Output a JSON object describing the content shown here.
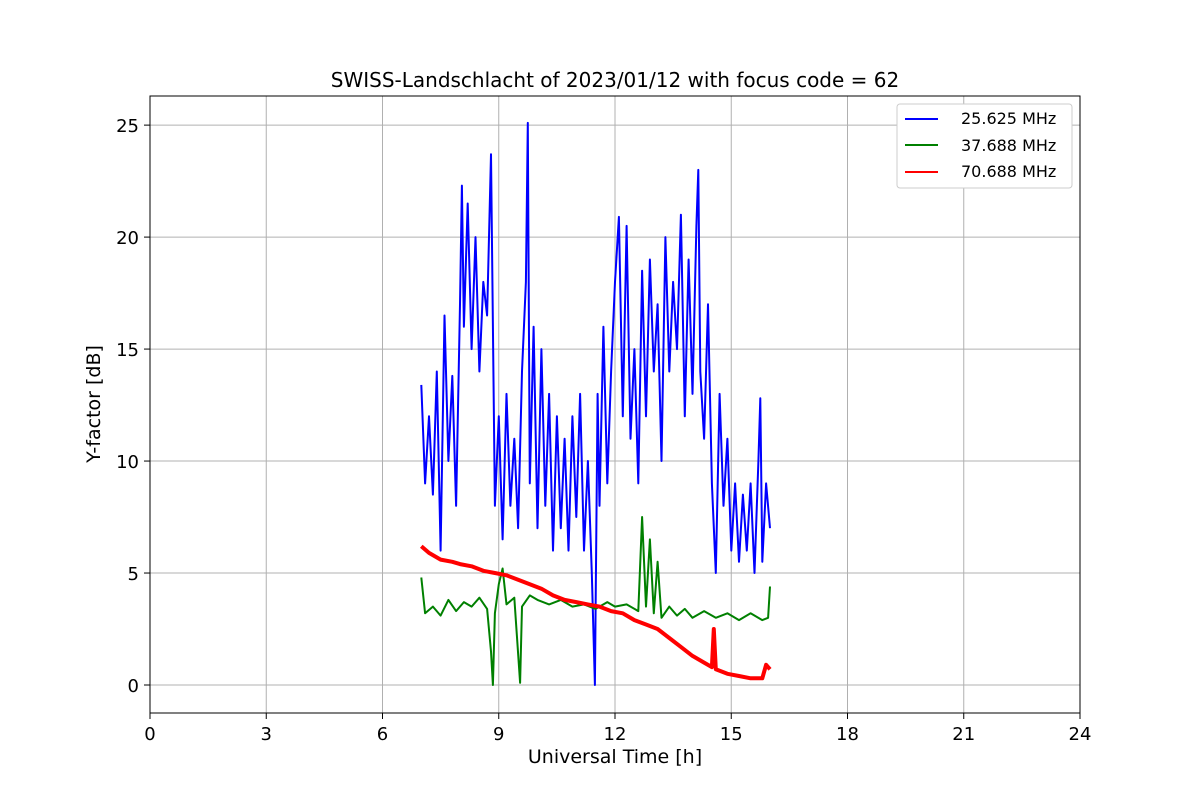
{
  "chart_data": {
    "type": "line",
    "title": "SWISS-Landschlacht of 2023/01/12 with focus code = 62",
    "xlabel": "Universal Time [h]",
    "ylabel": "Y-factor [dB]",
    "xlim": [
      0,
      24
    ],
    "ylim": [
      -1.25,
      26.3
    ],
    "xticks": [
      0,
      3,
      6,
      9,
      12,
      15,
      18,
      21,
      24
    ],
    "yticks": [
      0,
      5,
      10,
      15,
      20,
      25
    ],
    "xtick_labels": [
      "0",
      "3",
      "6",
      "9",
      "12",
      "15",
      "18",
      "21",
      "24"
    ],
    "ytick_labels": [
      "0",
      "5",
      "10",
      "15",
      "20",
      "25"
    ],
    "grid": true,
    "legend_position": "top-right",
    "series": [
      {
        "name": "25.625 MHz",
        "color": "#0000ff",
        "points": [
          [
            7.0,
            13.4
          ],
          [
            7.1,
            9.0
          ],
          [
            7.2,
            12.0
          ],
          [
            7.3,
            8.5
          ],
          [
            7.4,
            14.0
          ],
          [
            7.5,
            6.0
          ],
          [
            7.6,
            16.5
          ],
          [
            7.7,
            10.0
          ],
          [
            7.8,
            13.8
          ],
          [
            7.9,
            8.0
          ],
          [
            8.0,
            17.0
          ],
          [
            8.05,
            22.3
          ],
          [
            8.1,
            16.0
          ],
          [
            8.2,
            21.5
          ],
          [
            8.3,
            15.0
          ],
          [
            8.4,
            20.0
          ],
          [
            8.5,
            14.0
          ],
          [
            8.6,
            18.0
          ],
          [
            8.7,
            16.5
          ],
          [
            8.8,
            23.7
          ],
          [
            8.9,
            8.0
          ],
          [
            9.0,
            12.0
          ],
          [
            9.1,
            6.5
          ],
          [
            9.2,
            13.0
          ],
          [
            9.3,
            8.0
          ],
          [
            9.4,
            11.0
          ],
          [
            9.5,
            7.0
          ],
          [
            9.6,
            14.0
          ],
          [
            9.7,
            18.0
          ],
          [
            9.75,
            25.1
          ],
          [
            9.8,
            9.0
          ],
          [
            9.9,
            16.0
          ],
          [
            10.0,
            7.0
          ],
          [
            10.1,
            15.0
          ],
          [
            10.2,
            8.0
          ],
          [
            10.3,
            13.0
          ],
          [
            10.4,
            6.0
          ],
          [
            10.5,
            12.0
          ],
          [
            10.6,
            7.0
          ],
          [
            10.7,
            11.0
          ],
          [
            10.8,
            6.0
          ],
          [
            10.9,
            12.0
          ],
          [
            11.0,
            7.5
          ],
          [
            11.1,
            13.0
          ],
          [
            11.2,
            6.0
          ],
          [
            11.3,
            10.0
          ],
          [
            11.4,
            5.0
          ],
          [
            11.48,
            0.0
          ],
          [
            11.55,
            13.0
          ],
          [
            11.6,
            8.0
          ],
          [
            11.7,
            16.0
          ],
          [
            11.8,
            9.0
          ],
          [
            11.9,
            14.0
          ],
          [
            12.0,
            18.0
          ],
          [
            12.1,
            20.9
          ],
          [
            12.2,
            12.0
          ],
          [
            12.3,
            20.5
          ],
          [
            12.4,
            11.0
          ],
          [
            12.5,
            15.0
          ],
          [
            12.6,
            9.0
          ],
          [
            12.7,
            18.5
          ],
          [
            12.8,
            12.0
          ],
          [
            12.9,
            19.0
          ],
          [
            13.0,
            14.0
          ],
          [
            13.1,
            17.0
          ],
          [
            13.2,
            10.0
          ],
          [
            13.3,
            20.0
          ],
          [
            13.4,
            14.0
          ],
          [
            13.5,
            18.0
          ],
          [
            13.6,
            15.0
          ],
          [
            13.7,
            21.0
          ],
          [
            13.8,
            12.0
          ],
          [
            13.9,
            19.0
          ],
          [
            14.0,
            13.0
          ],
          [
            14.1,
            20.5
          ],
          [
            14.15,
            23.0
          ],
          [
            14.2,
            14.0
          ],
          [
            14.3,
            11.0
          ],
          [
            14.4,
            17.0
          ],
          [
            14.5,
            9.0
          ],
          [
            14.6,
            5.0
          ],
          [
            14.7,
            13.0
          ],
          [
            14.8,
            8.0
          ],
          [
            14.9,
            11.0
          ],
          [
            15.0,
            6.0
          ],
          [
            15.1,
            9.0
          ],
          [
            15.2,
            5.5
          ],
          [
            15.3,
            8.5
          ],
          [
            15.4,
            6.0
          ],
          [
            15.5,
            9.0
          ],
          [
            15.6,
            5.0
          ],
          [
            15.7,
            10.0
          ],
          [
            15.75,
            12.8
          ],
          [
            15.8,
            5.5
          ],
          [
            15.9,
            9.0
          ],
          [
            16.0,
            7.0
          ]
        ]
      },
      {
        "name": "37.688 MHz",
        "color": "#008000",
        "points": [
          [
            7.0,
            4.8
          ],
          [
            7.1,
            3.2
          ],
          [
            7.3,
            3.5
          ],
          [
            7.5,
            3.1
          ],
          [
            7.7,
            3.8
          ],
          [
            7.9,
            3.3
          ],
          [
            8.1,
            3.7
          ],
          [
            8.3,
            3.5
          ],
          [
            8.5,
            3.9
          ],
          [
            8.7,
            3.4
          ],
          [
            8.8,
            1.5
          ],
          [
            8.85,
            0.0
          ],
          [
            8.9,
            3.2
          ],
          [
            9.0,
            4.5
          ],
          [
            9.1,
            5.2
          ],
          [
            9.2,
            3.6
          ],
          [
            9.4,
            3.9
          ],
          [
            9.55,
            0.1
          ],
          [
            9.6,
            3.5
          ],
          [
            9.8,
            4.0
          ],
          [
            10.0,
            3.8
          ],
          [
            10.3,
            3.6
          ],
          [
            10.6,
            3.8
          ],
          [
            10.9,
            3.5
          ],
          [
            11.2,
            3.6
          ],
          [
            11.5,
            3.4
          ],
          [
            11.8,
            3.7
          ],
          [
            12.0,
            3.5
          ],
          [
            12.3,
            3.6
          ],
          [
            12.6,
            3.3
          ],
          [
            12.7,
            7.5
          ],
          [
            12.8,
            3.5
          ],
          [
            12.9,
            6.5
          ],
          [
            13.0,
            3.2
          ],
          [
            13.1,
            5.5
          ],
          [
            13.2,
            3.0
          ],
          [
            13.4,
            3.5
          ],
          [
            13.6,
            3.1
          ],
          [
            13.8,
            3.4
          ],
          [
            14.0,
            3.0
          ],
          [
            14.3,
            3.3
          ],
          [
            14.6,
            3.0
          ],
          [
            14.9,
            3.2
          ],
          [
            15.2,
            2.9
          ],
          [
            15.5,
            3.2
          ],
          [
            15.8,
            2.9
          ],
          [
            15.95,
            3.0
          ],
          [
            16.0,
            4.4
          ]
        ]
      },
      {
        "name": "70.688 MHz",
        "color": "#ff0000",
        "points": [
          [
            7.0,
            6.2
          ],
          [
            7.2,
            5.9
          ],
          [
            7.5,
            5.6
          ],
          [
            7.8,
            5.5
          ],
          [
            8.0,
            5.4
          ],
          [
            8.3,
            5.3
          ],
          [
            8.6,
            5.1
          ],
          [
            8.9,
            5.0
          ],
          [
            9.2,
            4.9
          ],
          [
            9.5,
            4.7
          ],
          [
            9.8,
            4.5
          ],
          [
            10.1,
            4.3
          ],
          [
            10.4,
            4.0
          ],
          [
            10.7,
            3.8
          ],
          [
            11.0,
            3.7
          ],
          [
            11.3,
            3.6
          ],
          [
            11.6,
            3.5
          ],
          [
            11.9,
            3.3
          ],
          [
            12.2,
            3.2
          ],
          [
            12.5,
            2.9
          ],
          [
            12.8,
            2.7
          ],
          [
            13.1,
            2.5
          ],
          [
            13.4,
            2.1
          ],
          [
            13.7,
            1.7
          ],
          [
            14.0,
            1.3
          ],
          [
            14.3,
            1.0
          ],
          [
            14.5,
            0.8
          ],
          [
            14.55,
            2.5
          ],
          [
            14.6,
            0.7
          ],
          [
            14.9,
            0.5
          ],
          [
            15.2,
            0.4
          ],
          [
            15.5,
            0.3
          ],
          [
            15.8,
            0.3
          ],
          [
            15.9,
            0.9
          ],
          [
            16.0,
            0.7
          ]
        ]
      }
    ]
  }
}
